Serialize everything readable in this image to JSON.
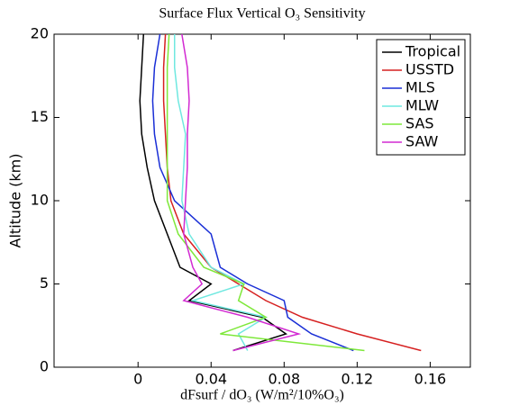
{
  "chart_data": {
    "type": "line",
    "title": "Surface Flux Vertical O₃ Sensitivity",
    "x_label": "dFsurf / dO₃ (W/m²/10%O₃)",
    "y_label": "Altitude (km)",
    "y": [
      1,
      2,
      3,
      4,
      5,
      6,
      8,
      10,
      12,
      14,
      16,
      18,
      20
    ],
    "series": [
      {
        "name": "Tropical",
        "color": "#000000",
        "values": [
          0.052,
          0.081,
          0.068,
          0.028,
          0.04,
          0.023,
          0.016,
          0.009,
          0.005,
          0.002,
          0.001,
          0.002,
          0.003
        ]
      },
      {
        "name": "USSTD",
        "color": "#d62020",
        "values": [
          0.155,
          0.12,
          0.09,
          0.07,
          0.055,
          0.04,
          0.025,
          0.018,
          0.016,
          0.015,
          0.014,
          0.014,
          0.015
        ]
      },
      {
        "name": "MLS",
        "color": "#1a2fd6",
        "values": [
          0.118,
          0.095,
          0.082,
          0.08,
          0.06,
          0.045,
          0.04,
          0.02,
          0.012,
          0.009,
          0.008,
          0.009,
          0.012
        ]
      },
      {
        "name": "MLW",
        "color": "#6fe8e0",
        "values": [
          0.06,
          0.055,
          0.07,
          0.03,
          0.058,
          0.04,
          0.028,
          0.024,
          0.025,
          0.026,
          0.022,
          0.02,
          0.02
        ]
      },
      {
        "name": "SAS",
        "color": "#7ee83a",
        "values": [
          0.124,
          0.045,
          0.07,
          0.055,
          0.058,
          0.036,
          0.022,
          0.016,
          0.016,
          0.016,
          0.016,
          0.016,
          0.017
        ]
      },
      {
        "name": "SAW",
        "color": "#d22ad2",
        "values": [
          0.052,
          0.088,
          0.06,
          0.025,
          0.035,
          0.03,
          0.025,
          0.026,
          0.027,
          0.027,
          0.028,
          0.027,
          0.024
        ]
      }
    ],
    "xlim": [
      -0.046,
      0.182
    ],
    "xticks": [
      0,
      0.04,
      0.08,
      0.12,
      0.16
    ],
    "ylim": [
      0,
      20
    ],
    "yticks": [
      0,
      5,
      10,
      15,
      20
    ],
    "legend": "upper right"
  }
}
